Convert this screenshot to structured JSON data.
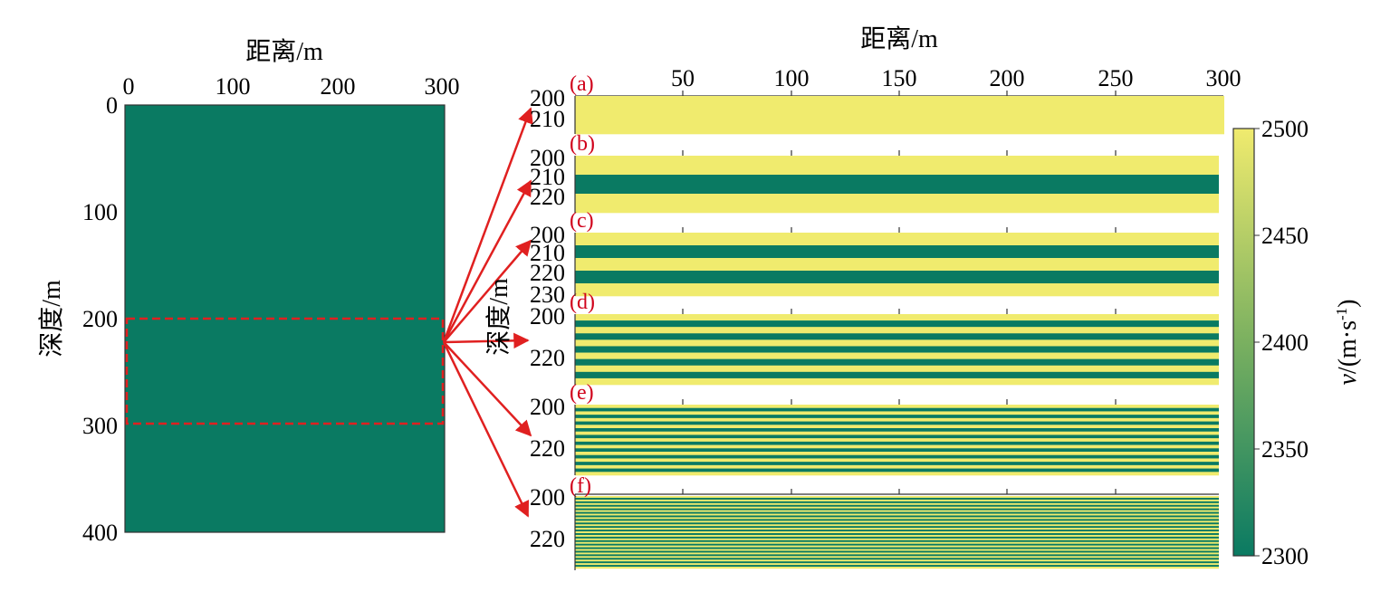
{
  "colors": {
    "low": "#0a7a62",
    "high": "#f0eb6e",
    "arrow": "#e02020",
    "accent": "#d0021b"
  },
  "chart_data": [
    {
      "type": "heatmap",
      "name": "overview",
      "xlabel": "距离/m",
      "ylabel": "深度/m",
      "xlim": [
        0,
        300
      ],
      "ylim": [
        0,
        400
      ],
      "xticks": [
        "0",
        "100",
        "200",
        "300"
      ],
      "yticks": [
        "0",
        "100",
        "200",
        "300",
        "400"
      ],
      "uniform_value": 2300,
      "highlight_box": {
        "x": [
          0,
          300
        ],
        "depth": [
          200,
          300
        ]
      }
    },
    {
      "type": "heatmap",
      "name": "layer-panels",
      "xlabel": "距离/m",
      "ylabel": "深度/m",
      "xticks": [
        "50",
        "100",
        "150",
        "200",
        "250",
        "300"
      ],
      "panels": [
        {
          "label": "(a)",
          "yticks": [
            "200",
            "210"
          ],
          "layers": 1
        },
        {
          "label": "(b)",
          "yticks": [
            "200",
            "210",
            "220"
          ],
          "layers": 3
        },
        {
          "label": "(c)",
          "yticks": [
            "200",
            "210",
            "220",
            "230"
          ],
          "layers": 5
        },
        {
          "label": "(d)",
          "yticks": [
            "200",
            "220"
          ],
          "layers": 11
        },
        {
          "label": "(e)",
          "yticks": [
            "200",
            "220"
          ],
          "layers": 21
        },
        {
          "label": "(f)",
          "yticks": [
            "200",
            "220"
          ],
          "layers": 41
        }
      ]
    },
    {
      "type": "colorbar",
      "label_var": "v",
      "label_unit": "/(m·s",
      "label_exp": "-1",
      "label_close": ")",
      "range": [
        2300,
        2500
      ],
      "ticks": [
        "2500",
        "2450",
        "2400",
        "2350",
        "2300"
      ]
    }
  ]
}
